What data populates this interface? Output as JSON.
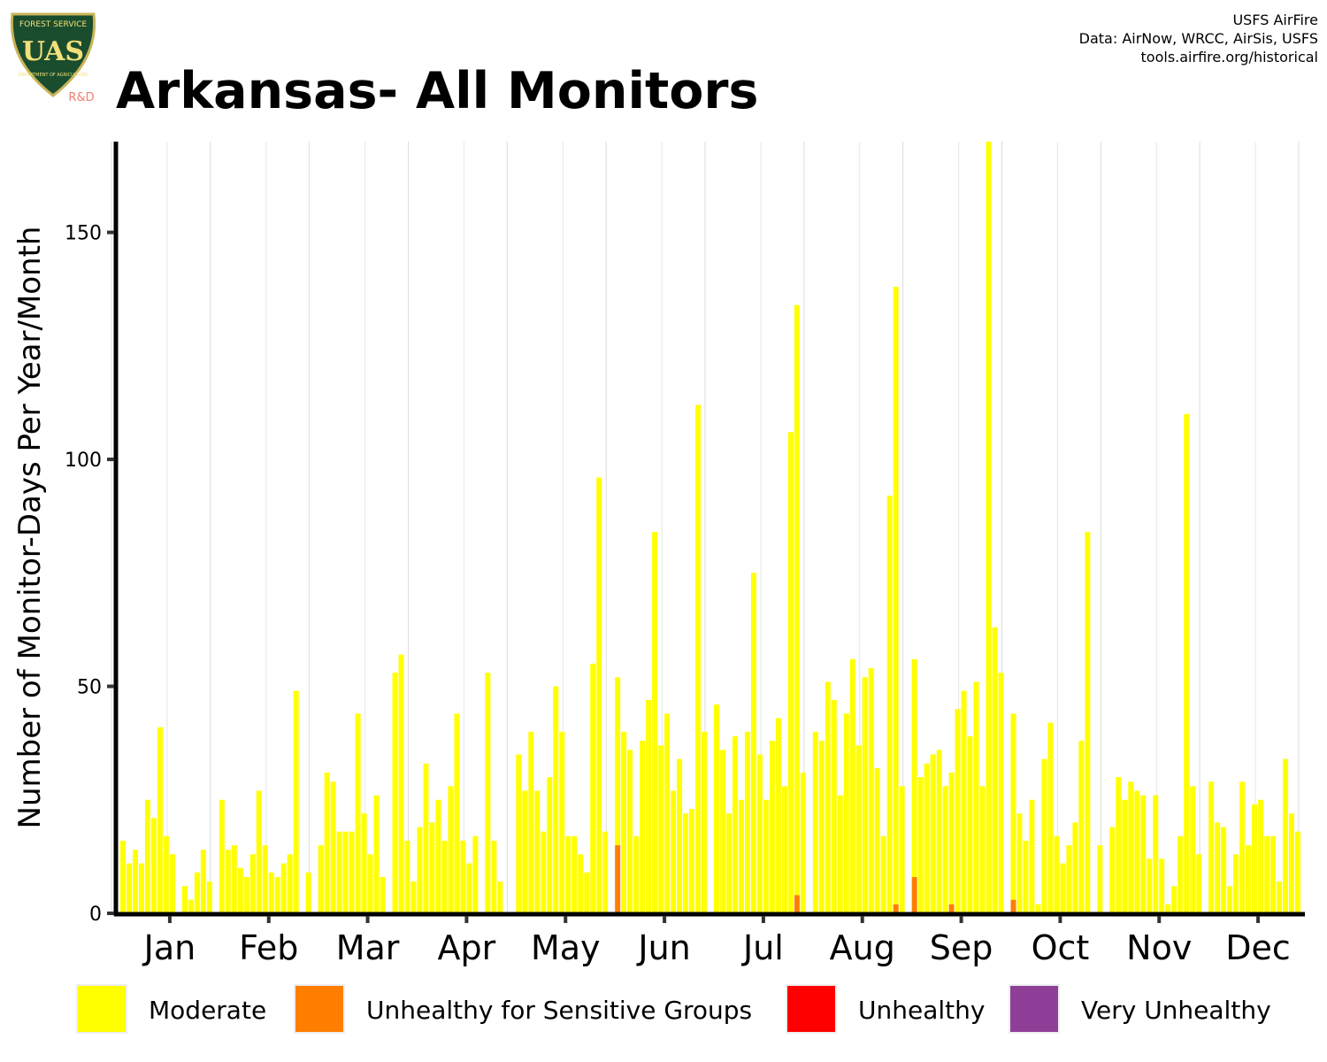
{
  "header": {
    "title": "Arkansas- All Monitors",
    "credits": [
      "USFS AirFire",
      "Data: AirNow, WRCC, AirSis, USFS",
      "tools.airfire.org/historical"
    ],
    "logo": {
      "top_text": "FOREST SERVICE",
      "letters": "UAS",
      "bottom_text": "DEPARTMENT OF AGRICULTURE",
      "badge": "R&D",
      "colors": {
        "shield": "#1a4d2e",
        "rim": "#c9b458",
        "letters": "#f2e07a",
        "badge": "#f08070"
      }
    }
  },
  "chart_data": {
    "type": "bar",
    "stacked": true,
    "title": "Arkansas- All Monitors",
    "ylabel": "Number of Monitor-Days Per Year/Month",
    "xlabel": "",
    "ylim": [
      0,
      170
    ],
    "yticks": [
      0,
      50,
      100,
      150
    ],
    "grid": "vertical lines between months",
    "legend_position": "bottom",
    "categories": [
      "Jan",
      "Feb",
      "Mar",
      "Apr",
      "May",
      "Jun",
      "Jul",
      "Aug",
      "Sep",
      "Oct",
      "Nov",
      "Dec"
    ],
    "bars_per_month": 16,
    "colors": {
      "Moderate": "#ffff00",
      "Unhealthy for Sensitive Groups": "#ff7e00",
      "Unhealthy": "#ff0000",
      "Very Unhealthy": "#8f3f97"
    },
    "legend": [
      "Moderate",
      "Unhealthy for Sensitive Groups",
      "Unhealthy",
      "Very Unhealthy"
    ],
    "series": [
      {
        "name": "Moderate",
        "values": [
          [
            16,
            11,
            14,
            11,
            25,
            21,
            41,
            17,
            13,
            0,
            6,
            3,
            9,
            14,
            7,
            0
          ],
          [
            25,
            14,
            15,
            10,
            8,
            13,
            27,
            15,
            9,
            8,
            11,
            13,
            49,
            0,
            9,
            0
          ],
          [
            15,
            31,
            29,
            18,
            18,
            18,
            44,
            22,
            13,
            26,
            8,
            0,
            53,
            57,
            16,
            7
          ],
          [
            19,
            33,
            20,
            25,
            16,
            28,
            44,
            16,
            11,
            17,
            0,
            53,
            16,
            7,
            0,
            0
          ],
          [
            35,
            27,
            40,
            27,
            18,
            30,
            50,
            40,
            17,
            17,
            13,
            9,
            55,
            96,
            18,
            0
          ],
          [
            37,
            40,
            36,
            17,
            38,
            47,
            84,
            37,
            44,
            27,
            34,
            22,
            23,
            112,
            40,
            0
          ],
          [
            46,
            36,
            22,
            39,
            25,
            40,
            75,
            35,
            25,
            38,
            43,
            28,
            106,
            130,
            31,
            0
          ],
          [
            40,
            38,
            51,
            47,
            26,
            44,
            56,
            37,
            52,
            54,
            32,
            17,
            92,
            136,
            28,
            0
          ],
          [
            48,
            30,
            33,
            35,
            36,
            28,
            29,
            45,
            49,
            39,
            51,
            28,
            170,
            63,
            53,
            0
          ],
          [
            41,
            22,
            16,
            25,
            2,
            34,
            42,
            17,
            11,
            15,
            20,
            38,
            84,
            0,
            15,
            0
          ],
          [
            19,
            30,
            25,
            29,
            27,
            26,
            12,
            26,
            12,
            2,
            6,
            17,
            110,
            28,
            13,
            0
          ],
          [
            29,
            20,
            19,
            6,
            13,
            29,
            15,
            24,
            25,
            17,
            17,
            7,
            34,
            22,
            18,
            0
          ]
        ]
      },
      {
        "name": "Unhealthy for Sensitive Groups",
        "values": [
          [
            0,
            0,
            0,
            0,
            0,
            0,
            0,
            0,
            0,
            0,
            0,
            0,
            0,
            0,
            0,
            0
          ],
          [
            0,
            0,
            0,
            0,
            0,
            0,
            0,
            0,
            0,
            0,
            0,
            0,
            0,
            0,
            0,
            0
          ],
          [
            0,
            0,
            0,
            0,
            0,
            0,
            0,
            0,
            0,
            0,
            0,
            0,
            0,
            0,
            0,
            0
          ],
          [
            0,
            0,
            0,
            0,
            0,
            0,
            0,
            0,
            0,
            0,
            0,
            0,
            0,
            0,
            0,
            0
          ],
          [
            0,
            0,
            0,
            0,
            0,
            0,
            0,
            0,
            0,
            0,
            0,
            0,
            0,
            0,
            0,
            0
          ],
          [
            15,
            0,
            0,
            0,
            0,
            0,
            0,
            0,
            0,
            0,
            0,
            0,
            0,
            0,
            0,
            0
          ],
          [
            0,
            0,
            0,
            0,
            0,
            0,
            0,
            0,
            0,
            0,
            0,
            0,
            0,
            4,
            0,
            0
          ],
          [
            0,
            0,
            0,
            0,
            0,
            0,
            0,
            0,
            0,
            0,
            0,
            0,
            0,
            2,
            0,
            0
          ],
          [
            8,
            0,
            0,
            0,
            0,
            0,
            2,
            0,
            0,
            0,
            0,
            0,
            0,
            0,
            0,
            0
          ],
          [
            3,
            0,
            0,
            0,
            0,
            0,
            0,
            0,
            0,
            0,
            0,
            0,
            0,
            0,
            0,
            0
          ],
          [
            0,
            0,
            0,
            0,
            0,
            0,
            0,
            0,
            0,
            0,
            0,
            0,
            0,
            0,
            0,
            0
          ],
          [
            0,
            0,
            0,
            0,
            0,
            0,
            0,
            0,
            0,
            0,
            0,
            0,
            0,
            0,
            0,
            0
          ]
        ]
      }
    ]
  }
}
